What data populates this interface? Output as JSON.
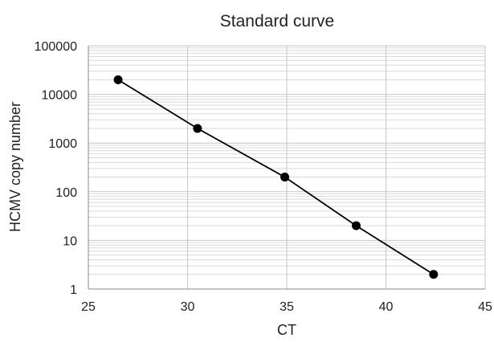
{
  "chart_data": {
    "type": "scatter",
    "title": "Standard curve",
    "xlabel": "CT",
    "ylabel": "HCMV  copy number",
    "xlim": [
      25,
      45
    ],
    "ylim": [
      1,
      100000
    ],
    "yscale": "log",
    "grid": true,
    "x_ticks": [
      "25",
      "30",
      "35",
      "40",
      "45"
    ],
    "y_ticks": [
      "1",
      "10",
      "100",
      "1000",
      "10000",
      "100000"
    ],
    "series": [
      {
        "x": [
          26.5,
          30.5,
          34.9,
          38.5,
          42.4
        ],
        "y": [
          20000,
          2000,
          200,
          20,
          2
        ],
        "trendline": true
      }
    ],
    "colors": {
      "marker": "#000000",
      "line": "#000000",
      "grid": "#d9d9d9"
    }
  }
}
